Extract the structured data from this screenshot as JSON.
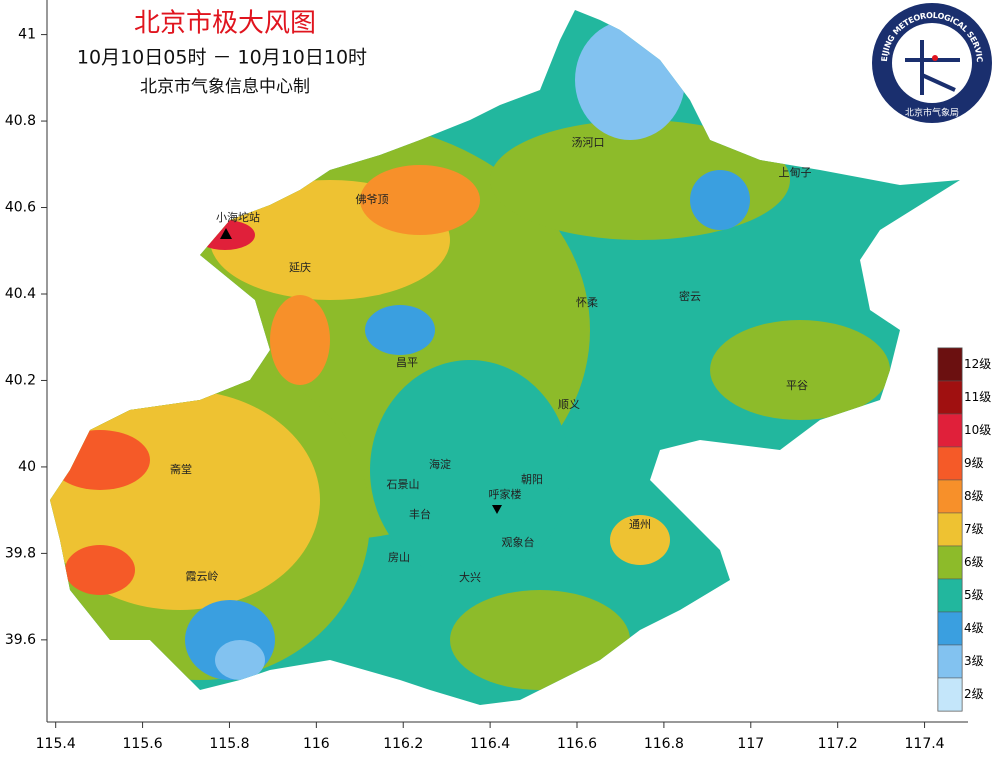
{
  "map": {
    "title": "北京市极大风图",
    "subtitle": "10月10日05时  －  10月10日10时",
    "producer": "北京市气象信息中心制",
    "logo": {
      "text_en": "BEIJING METEOROLOGICAL SERVICE",
      "text_cn": "北京市气象局"
    },
    "xlim": [
      115.38,
      117.5
    ],
    "xticks": [
      115.4,
      115.6,
      115.8,
      116,
      116.2,
      116.4,
      116.6,
      116.8,
      117,
      117.2,
      117.4
    ],
    "ylim": [
      39.41,
      41.08
    ],
    "yticks": [
      39.6,
      39.8,
      40,
      40.2,
      40.4,
      40.6,
      40.8,
      41
    ],
    "legend": [
      {
        "label": "12级",
        "color": "#6b1010"
      },
      {
        "label": "11级",
        "color": "#a01010"
      },
      {
        "label": "10级",
        "color": "#e0203a"
      },
      {
        "label": "9级",
        "color": "#f55a28"
      },
      {
        "label": "8级",
        "color": "#f7902a"
      },
      {
        "label": "7级",
        "color": "#eec232"
      },
      {
        "label": "6级",
        "color": "#8dbb2a"
      },
      {
        "label": "5级",
        "color": "#22b79e"
      },
      {
        "label": "4级",
        "color": "#3a9fe0"
      },
      {
        "label": "3级",
        "color": "#82c2f0"
      },
      {
        "label": "2级",
        "color": "#c4e6fa"
      }
    ],
    "places": [
      "汤河口",
      "上甸子",
      "佛爷顶",
      "小海坨站",
      "延庆",
      "怀柔",
      "密云",
      "昌平",
      "平谷",
      "顺义",
      "海淀",
      "朝阳",
      "斋堂",
      "石景山",
      "呼家楼",
      "丰台",
      "通州",
      "观象台",
      "房山",
      "霞云岭",
      "大兴"
    ]
  }
}
